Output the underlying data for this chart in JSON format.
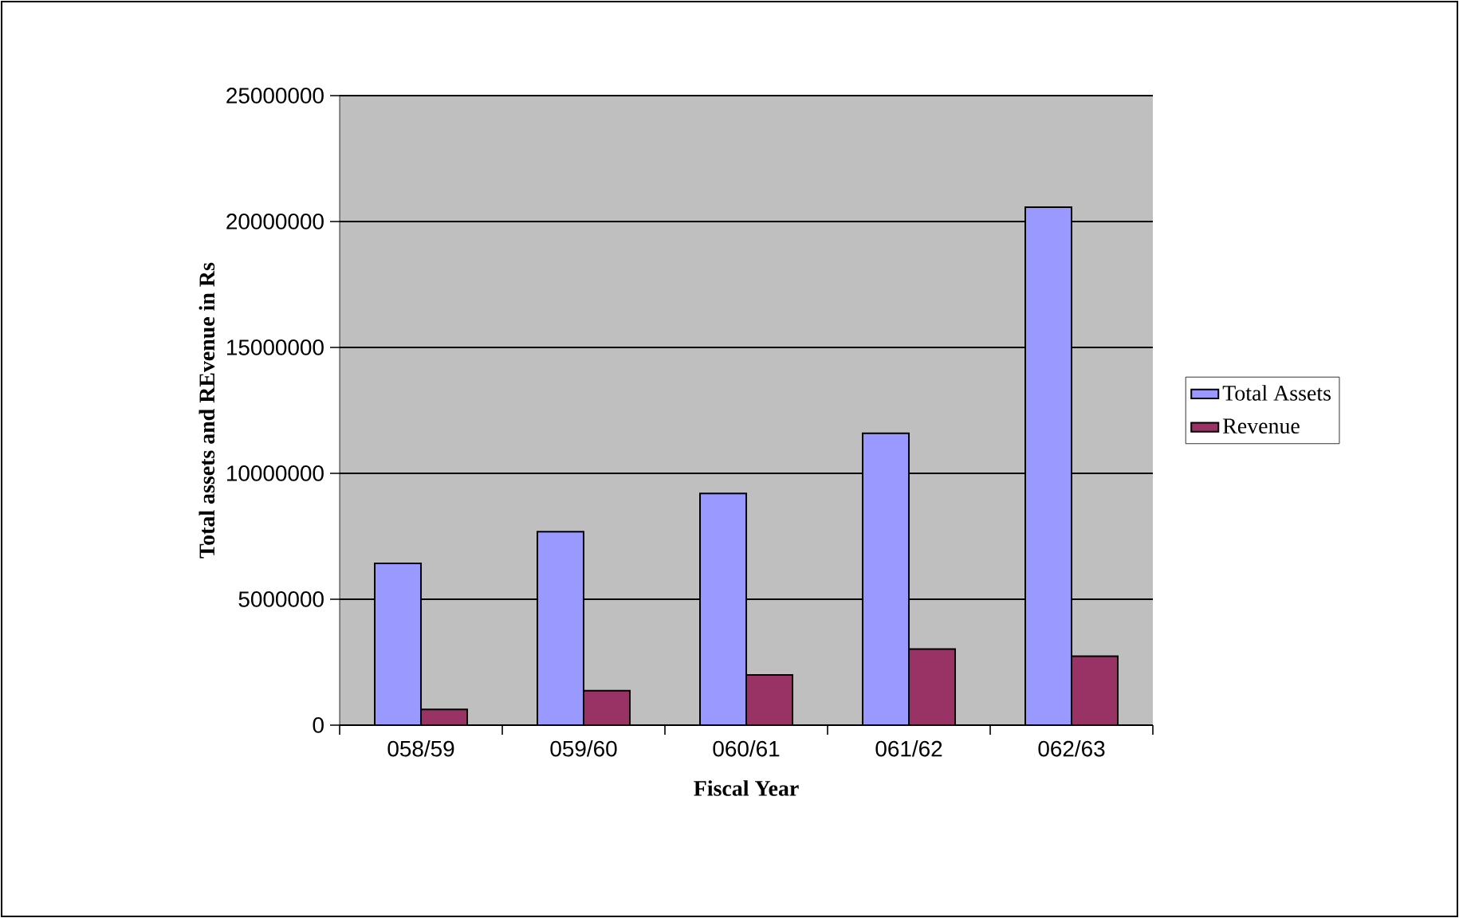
{
  "chart_data": {
    "type": "bar",
    "xlabel": "Fiscal Year",
    "ylabel": "Total assets and REvenue in Rs",
    "categories": [
      "058/59",
      "059/60",
      "060/61",
      "061/62",
      "062/63"
    ],
    "series": [
      {
        "name": "Total Assets",
        "color": "#9999ff",
        "values": [
          6420000,
          7680000,
          9200000,
          11590000,
          20570000
        ]
      },
      {
        "name": "Revenue",
        "color": "#993366",
        "values": [
          620000,
          1370000,
          1990000,
          3020000,
          2740000
        ]
      }
    ],
    "ylim": [
      0,
      25000000
    ],
    "yticks": [
      0,
      5000000,
      10000000,
      15000000,
      20000000,
      25000000
    ],
    "grid": "y",
    "legend": "right"
  }
}
